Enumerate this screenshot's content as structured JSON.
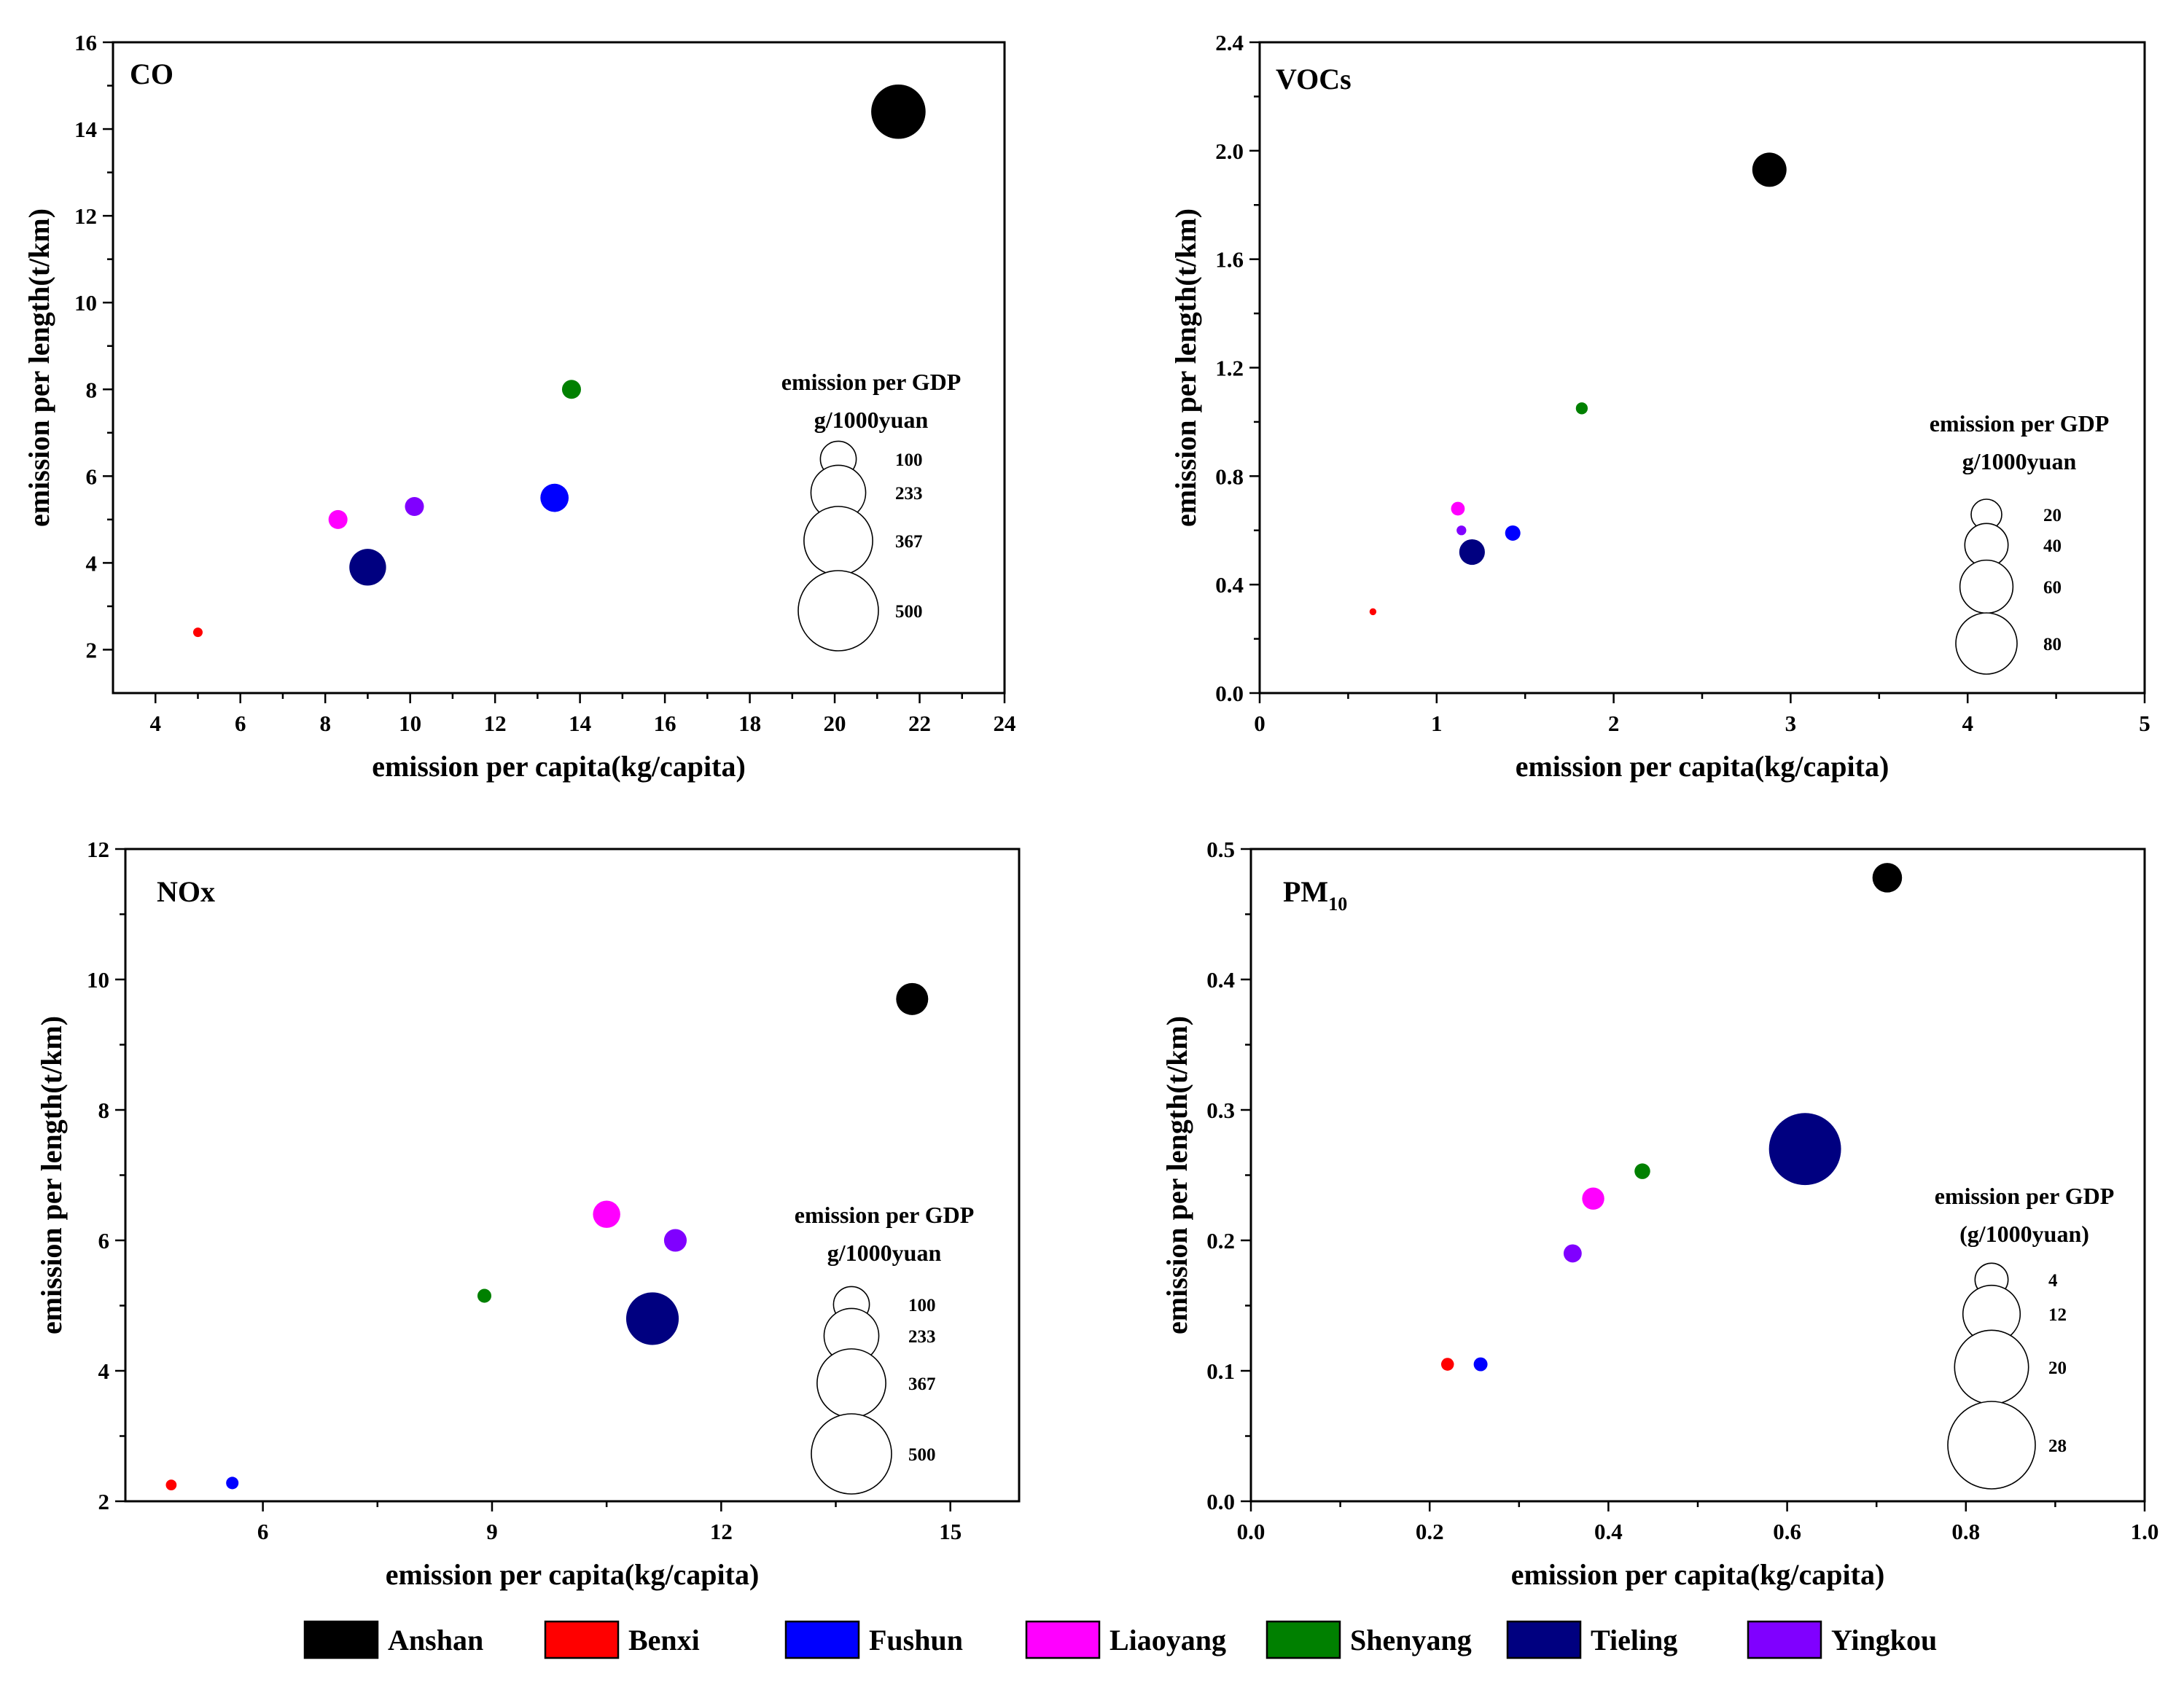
{
  "colors": {
    "Anshan": "#000000",
    "Benxi": "#ff0000",
    "Fushun": "#0000ff",
    "Liaoyang": "#ff00ff",
    "Shenyang": "#008000",
    "Tieling": "#000080",
    "Yingkou": "#8000ff"
  },
  "legend": {
    "entries": [
      "Anshan",
      "Benxi",
      "Fushun",
      "Liaoyang",
      "Shenyang",
      "Tieling",
      "Yingkou"
    ]
  },
  "chart_data": [
    {
      "type": "scatter",
      "title": "CO",
      "title_sub": "",
      "xlabel": "emission per capita(kg/capita)",
      "ylabel": "emission per length(t/km)",
      "xlim": [
        3,
        24
      ],
      "ylim": [
        1,
        16
      ],
      "xticks": [
        4,
        6,
        8,
        10,
        12,
        14,
        16,
        18,
        20,
        22,
        24
      ],
      "yticks": [
        2,
        4,
        6,
        8,
        10,
        12,
        14,
        16
      ],
      "xtick_labels": [
        "4",
        "6",
        "8",
        "10",
        "12",
        "14",
        "16",
        "18",
        "20",
        "22",
        "24"
      ],
      "ytick_labels": [
        "2",
        "4",
        "6",
        "8",
        "10",
        "12",
        "14",
        "16"
      ],
      "size_title": [
        "emission per GDP",
        "g/1000yuan"
      ],
      "size_ref": [
        100,
        233,
        367,
        500
      ],
      "size_labels": [
        "100",
        "233",
        "367",
        "500"
      ],
      "size_max": 500,
      "grid": false,
      "points": [
        {
          "city": "Anshan",
          "x": 21.5,
          "y": 14.4,
          "size": 230
        },
        {
          "city": "Benxi",
          "x": 5.0,
          "y": 2.4,
          "size": 7
        },
        {
          "city": "Fushun",
          "x": 13.4,
          "y": 5.5,
          "size": 62
        },
        {
          "city": "Liaoyang",
          "x": 8.3,
          "y": 5.0,
          "size": 28
        },
        {
          "city": "Shenyang",
          "x": 13.8,
          "y": 8.0,
          "size": 28
        },
        {
          "city": "Tieling",
          "x": 9.0,
          "y": 3.9,
          "size": 105
        },
        {
          "city": "Yingkou",
          "x": 10.1,
          "y": 5.3,
          "size": 28
        }
      ]
    },
    {
      "type": "scatter",
      "title": "VOCs",
      "title_sub": "",
      "xlabel": "emission per capita(kg/capita)",
      "ylabel": "emission per length(t/km)",
      "xlim": [
        0,
        5
      ],
      "ylim": [
        0,
        2.4
      ],
      "xticks": [
        0,
        1,
        2,
        3,
        4,
        5
      ],
      "yticks": [
        0.0,
        0.4,
        0.8,
        1.2,
        1.6,
        2.0,
        2.4
      ],
      "xtick_labels": [
        "0",
        "1",
        "2",
        "3",
        "4",
        "5"
      ],
      "ytick_labels": [
        "0.0",
        "0.4",
        "0.8",
        "1.2",
        "1.6",
        "2.0",
        "2.4"
      ],
      "size_title": [
        "emission per GDP",
        "g/1000yuan"
      ],
      "size_ref": [
        20,
        40,
        60,
        80
      ],
      "size_labels": [
        "20",
        "40",
        "60",
        "80"
      ],
      "size_max": 80,
      "grid": false,
      "points": [
        {
          "city": "Anshan",
          "x": 2.88,
          "y": 1.93,
          "size": 25
        },
        {
          "city": "Benxi",
          "x": 0.64,
          "y": 0.3,
          "size": 1
        },
        {
          "city": "Fushun",
          "x": 1.43,
          "y": 0.59,
          "size": 5
        },
        {
          "city": "Liaoyang",
          "x": 1.12,
          "y": 0.68,
          "size": 4
        },
        {
          "city": "Shenyang",
          "x": 1.82,
          "y": 1.05,
          "size": 3
        },
        {
          "city": "Tieling",
          "x": 1.2,
          "y": 0.52,
          "size": 14
        },
        {
          "city": "Yingkou",
          "x": 1.14,
          "y": 0.6,
          "size": 2
        }
      ]
    },
    {
      "type": "scatter",
      "title": "NOx",
      "title_sub": "",
      "xlabel": "emission per capita(kg/capita)",
      "ylabel": "emission per length(t/km)",
      "xlim": [
        4.2,
        15.9
      ],
      "ylim": [
        2,
        12
      ],
      "xticks": [
        6,
        9,
        12,
        15
      ],
      "yticks": [
        2,
        4,
        6,
        8,
        10,
        12
      ],
      "xtick_labels": [
        "6",
        "9",
        "12",
        "15"
      ],
      "ytick_labels": [
        "2",
        "4",
        "6",
        "8",
        "10",
        "12"
      ],
      "size_title": [
        "emission per GDP",
        "g/1000yuan"
      ],
      "size_ref": [
        100,
        233,
        367,
        500
      ],
      "size_labels": [
        "100",
        "233",
        "367",
        "500"
      ],
      "size_max": 500,
      "grid": false,
      "points": [
        {
          "city": "Anshan",
          "x": 14.5,
          "y": 9.7,
          "size": 80
        },
        {
          "city": "Benxi",
          "x": 4.8,
          "y": 2.25,
          "size": 9
        },
        {
          "city": "Fushun",
          "x": 5.6,
          "y": 2.28,
          "size": 12
        },
        {
          "city": "Liaoyang",
          "x": 10.5,
          "y": 6.4,
          "size": 58
        },
        {
          "city": "Shenyang",
          "x": 8.9,
          "y": 5.15,
          "size": 15
        },
        {
          "city": "Tieling",
          "x": 11.1,
          "y": 4.8,
          "size": 215
        },
        {
          "city": "Yingkou",
          "x": 11.4,
          "y": 6.0,
          "size": 40
        }
      ]
    },
    {
      "type": "scatter",
      "title": "PM",
      "title_sub": "10",
      "xlabel": "emission per capita(kg/capita)",
      "ylabel": "emission per length(t/km)",
      "xlim": [
        0,
        1.0
      ],
      "ylim": [
        0,
        0.5
      ],
      "xticks": [
        0.0,
        0.2,
        0.4,
        0.6,
        0.8,
        1.0
      ],
      "yticks": [
        0.0,
        0.1,
        0.2,
        0.3,
        0.4,
        0.5
      ],
      "xtick_labels": [
        "0.0",
        "0.2",
        "0.4",
        "0.6",
        "0.8",
        "1.0"
      ],
      "ytick_labels": [
        "0.0",
        "0.1",
        "0.2",
        "0.3",
        "0.4",
        "0.5"
      ],
      "size_title": [
        "emission per GDP",
        "(g/1000yuan)"
      ],
      "size_ref": [
        4,
        12,
        20,
        28
      ],
      "size_labels": [
        "4",
        "12",
        "20",
        "28"
      ],
      "size_max": 28,
      "grid": false,
      "points": [
        {
          "city": "Anshan",
          "x": 0.712,
          "y": 0.478,
          "size": 3.2
        },
        {
          "city": "Benxi",
          "x": 0.22,
          "y": 0.105,
          "size": 0.6
        },
        {
          "city": "Fushun",
          "x": 0.257,
          "y": 0.105,
          "size": 0.7
        },
        {
          "city": "Liaoyang",
          "x": 0.383,
          "y": 0.232,
          "size": 1.8
        },
        {
          "city": "Shenyang",
          "x": 0.438,
          "y": 0.253,
          "size": 0.9
        },
        {
          "city": "Tieling",
          "x": 0.62,
          "y": 0.27,
          "size": 19
        },
        {
          "city": "Yingkou",
          "x": 0.36,
          "y": 0.19,
          "size": 1.2
        }
      ]
    }
  ]
}
